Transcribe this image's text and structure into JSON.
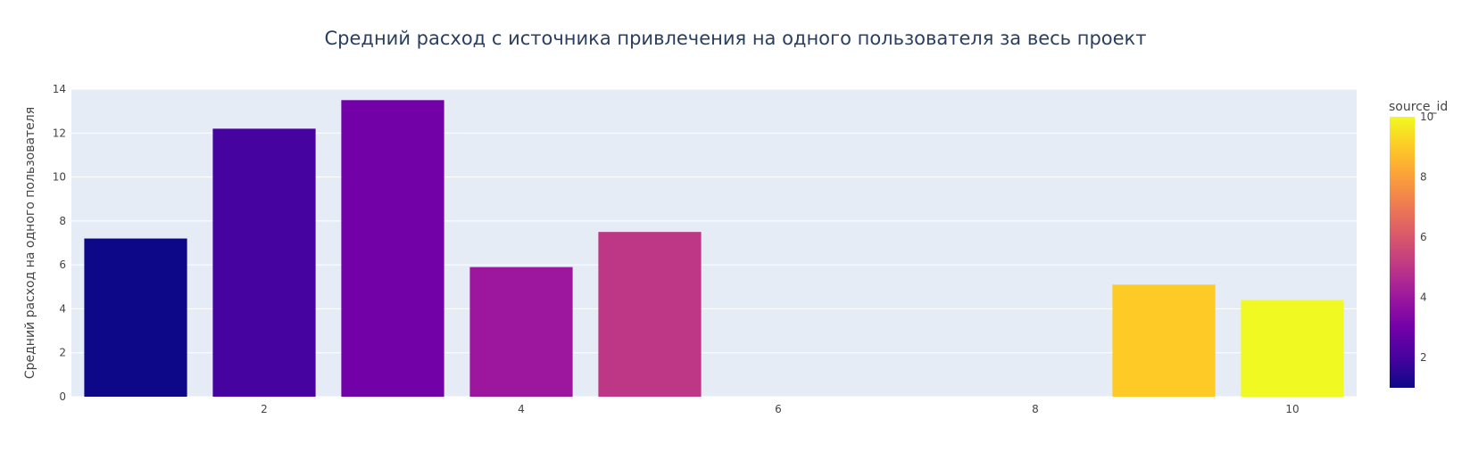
{
  "chart_data": {
    "type": "bar",
    "title": "Средний расход с источника привлечения на одного пользователя за весь проект",
    "xlabel": "",
    "ylabel": "Средний расход на одного пользователя",
    "x": [
      1,
      2,
      3,
      4,
      5,
      9,
      10
    ],
    "values": [
      7.2,
      12.2,
      13.5,
      5.9,
      7.5,
      5.1,
      4.4
    ],
    "color_values": [
      1,
      2,
      3,
      4,
      5,
      9,
      10
    ],
    "xlim": [
      0.5,
      10.5
    ],
    "ylim": [
      0,
      14
    ],
    "xticks": [
      2,
      4,
      6,
      8,
      10
    ],
    "yticks": [
      0,
      2,
      4,
      6,
      8,
      10,
      12,
      14
    ],
    "grid": true,
    "colorbar": {
      "title": "source_id",
      "range": [
        1,
        10
      ],
      "ticks": [
        2,
        4,
        6,
        8,
        10
      ],
      "colorscale": [
        "#0d0887",
        "#46039f",
        "#7201a8",
        "#9c179e",
        "#bd3786",
        "#d8576b",
        "#ed7953",
        "#fb9f3a",
        "#fdca26",
        "#f0f921"
      ]
    },
    "colors": {
      "plot_background": "#e5ecf6",
      "grid": "#ffffff"
    }
  }
}
